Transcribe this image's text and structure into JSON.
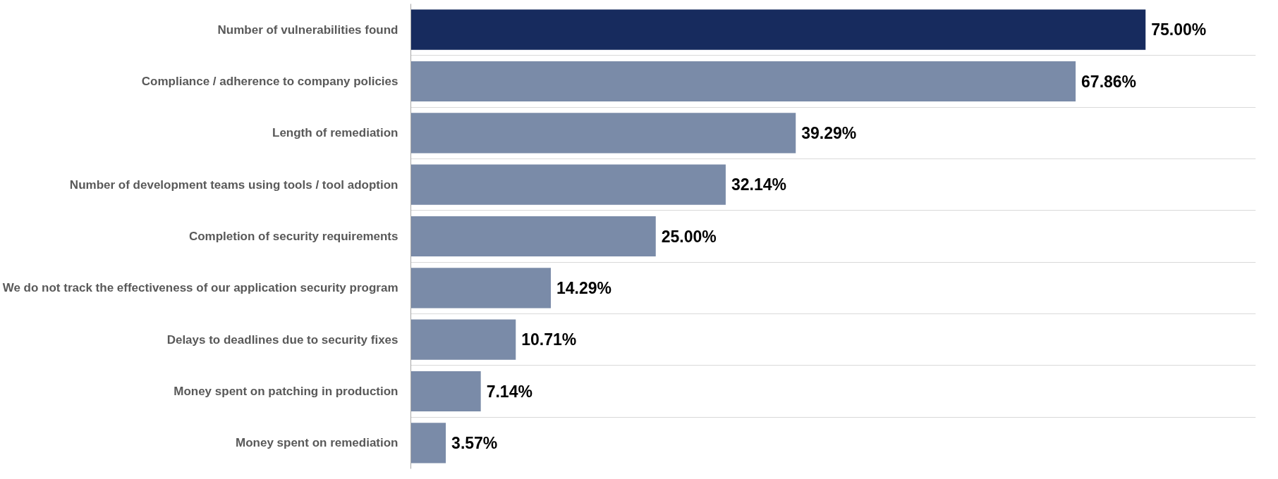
{
  "chart_data": {
    "type": "bar",
    "orientation": "horizontal",
    "categories": [
      "Number of vulnerabilities found",
      "Compliance / adherence to company policies",
      "Length of remediation",
      "Number of development teams using tools / tool adoption",
      "Completion of security requirements",
      "We do not track the effectiveness of our application security program",
      "Delays to deadlines due to security fixes",
      "Money spent on patching in production",
      "Money spent on remediation"
    ],
    "values": [
      75.0,
      67.86,
      39.29,
      32.14,
      25.0,
      14.29,
      10.71,
      7.14,
      3.57
    ],
    "colors": [
      "#172b5e",
      "#7a8ba8",
      "#7a8ba8",
      "#7a8ba8",
      "#7a8ba8",
      "#7a8ba8",
      "#7a8ba8",
      "#7a8ba8",
      "#7a8ba8"
    ],
    "value_labels": [
      "75.00%",
      "67.86%",
      "39.29%",
      "32.14%",
      "25.00%",
      "14.29%",
      "10.71%",
      "7.14%",
      "3.57%"
    ],
    "grid": "y",
    "tick_labels": "y"
  }
}
